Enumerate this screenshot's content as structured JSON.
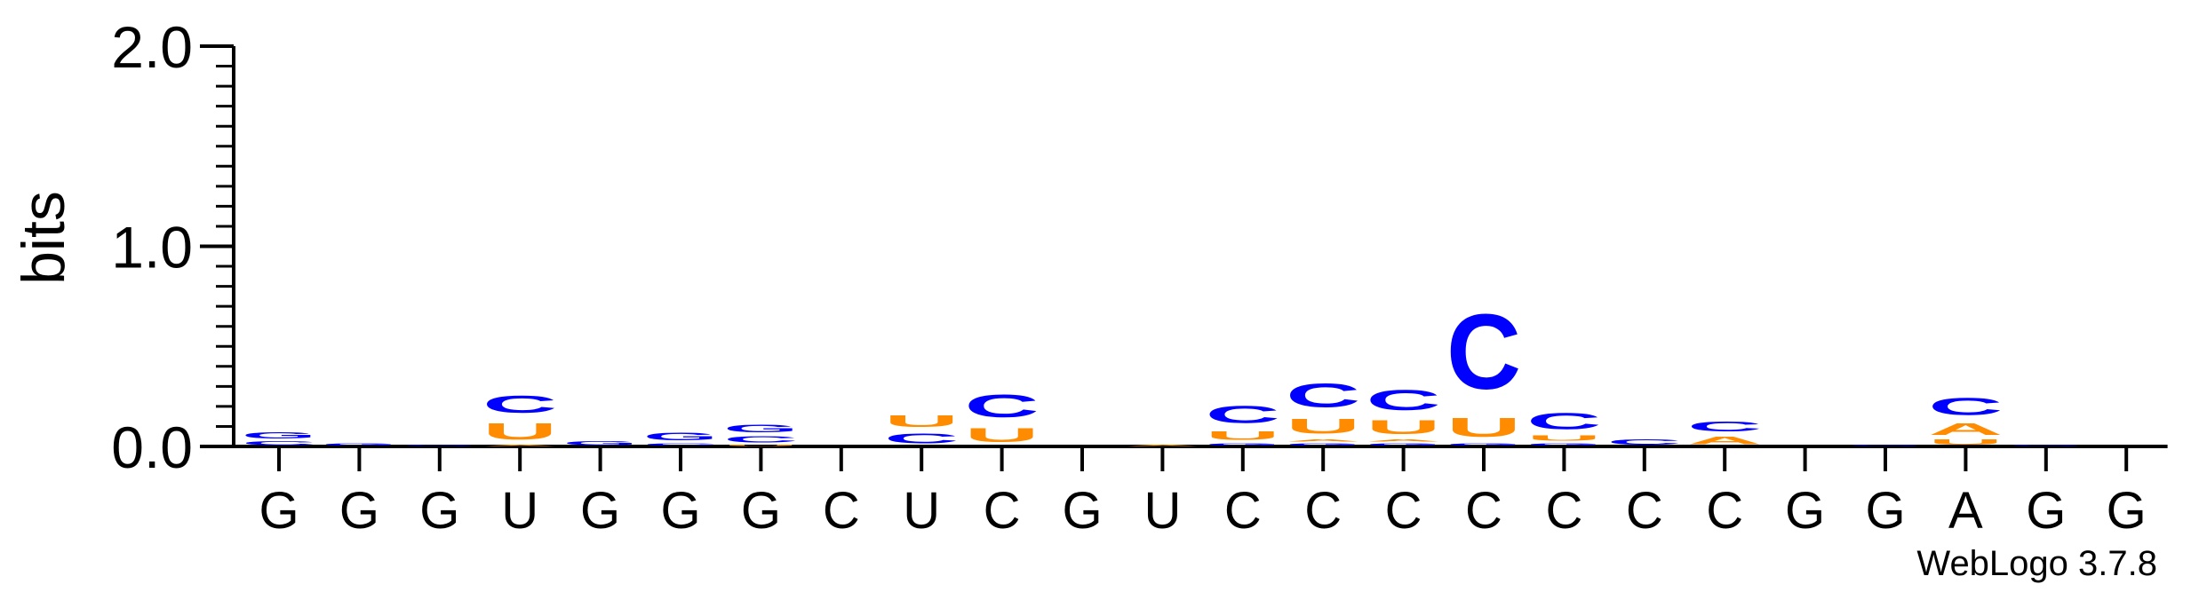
{
  "chart_data": {
    "type": "sequence-logo",
    "ylabel": "bits",
    "ylim": [
      0,
      2.0
    ],
    "yticks": [
      {
        "value": 0,
        "label": "0.0"
      },
      {
        "value": 1,
        "label": "1.0"
      },
      {
        "value": 2,
        "label": "2.0"
      }
    ],
    "yminor_step": 0.1,
    "consensus": [
      "G",
      "G",
      "G",
      "U",
      "G",
      "G",
      "G",
      "C",
      "U",
      "C",
      "G",
      "U",
      "C",
      "C",
      "C",
      "C",
      "C",
      "C",
      "C",
      "G",
      "G",
      "A",
      "G",
      "G"
    ],
    "colors": {
      "A": "#ff8c00",
      "C": "#0000ff",
      "G": "#0000ff",
      "U": "#ff8c00"
    },
    "positions": [
      [
        {
          "letter": "C",
          "bits": 0.03
        },
        {
          "letter": "G",
          "bits": 0.05
        }
      ],
      [
        {
          "letter": "G",
          "bits": 0.02
        }
      ],
      [
        {
          "letter": "G",
          "bits": 0.01
        }
      ],
      [
        {
          "letter": "A",
          "bits": 0.01
        },
        {
          "letter": "U",
          "bits": 0.13
        },
        {
          "letter": "C",
          "bits": 0.14
        }
      ],
      [
        {
          "letter": "G",
          "bits": 0.03
        }
      ],
      [
        {
          "letter": "C",
          "bits": 0.02
        },
        {
          "letter": "G",
          "bits": 0.06
        }
      ],
      [
        {
          "letter": "U",
          "bits": 0.01
        },
        {
          "letter": "C",
          "bits": 0.05
        },
        {
          "letter": "G",
          "bits": 0.06
        }
      ],
      [],
      [
        {
          "letter": "C",
          "bits": 0.08
        },
        {
          "letter": "U",
          "bits": 0.09
        }
      ],
      [
        {
          "letter": "U",
          "bits": 0.11
        },
        {
          "letter": "C",
          "bits": 0.18
        }
      ],
      [],
      [
        {
          "letter": "A",
          "bits": 0.01
        }
      ],
      [
        {
          "letter": "G",
          "bits": 0.02
        },
        {
          "letter": "U",
          "bits": 0.07
        },
        {
          "letter": "C",
          "bits": 0.14
        }
      ],
      [
        {
          "letter": "G",
          "bits": 0.02
        },
        {
          "letter": "A",
          "bits": 0.02
        },
        {
          "letter": "U",
          "bits": 0.12
        },
        {
          "letter": "C",
          "bits": 0.19
        }
      ],
      [
        {
          "letter": "G",
          "bits": 0.02
        },
        {
          "letter": "A",
          "bits": 0.02
        },
        {
          "letter": "U",
          "bits": 0.11
        },
        {
          "letter": "C",
          "bits": 0.16
        }
      ],
      [
        {
          "letter": "G",
          "bits": 0.02
        },
        {
          "letter": "U",
          "bits": 0.15
        },
        {
          "letter": "C",
          "bits": 0.6
        }
      ],
      [
        {
          "letter": "G",
          "bits": 0.02
        },
        {
          "letter": "U",
          "bits": 0.04
        },
        {
          "letter": "C",
          "bits": 0.13
        }
      ],
      [
        {
          "letter": "C",
          "bits": 0.04
        }
      ],
      [
        {
          "letter": "A",
          "bits": 0.06
        },
        {
          "letter": "C",
          "bits": 0.08
        }
      ],
      [],
      [
        {
          "letter": "G",
          "bits": 0.01
        }
      ],
      [
        {
          "letter": "U",
          "bits": 0.04
        },
        {
          "letter": "A",
          "bits": 0.09
        },
        {
          "letter": "C",
          "bits": 0.14
        }
      ],
      [
        {
          "letter": "G",
          "bits": 0.01
        }
      ],
      []
    ]
  },
  "credit": "WebLogo 3.7.8"
}
